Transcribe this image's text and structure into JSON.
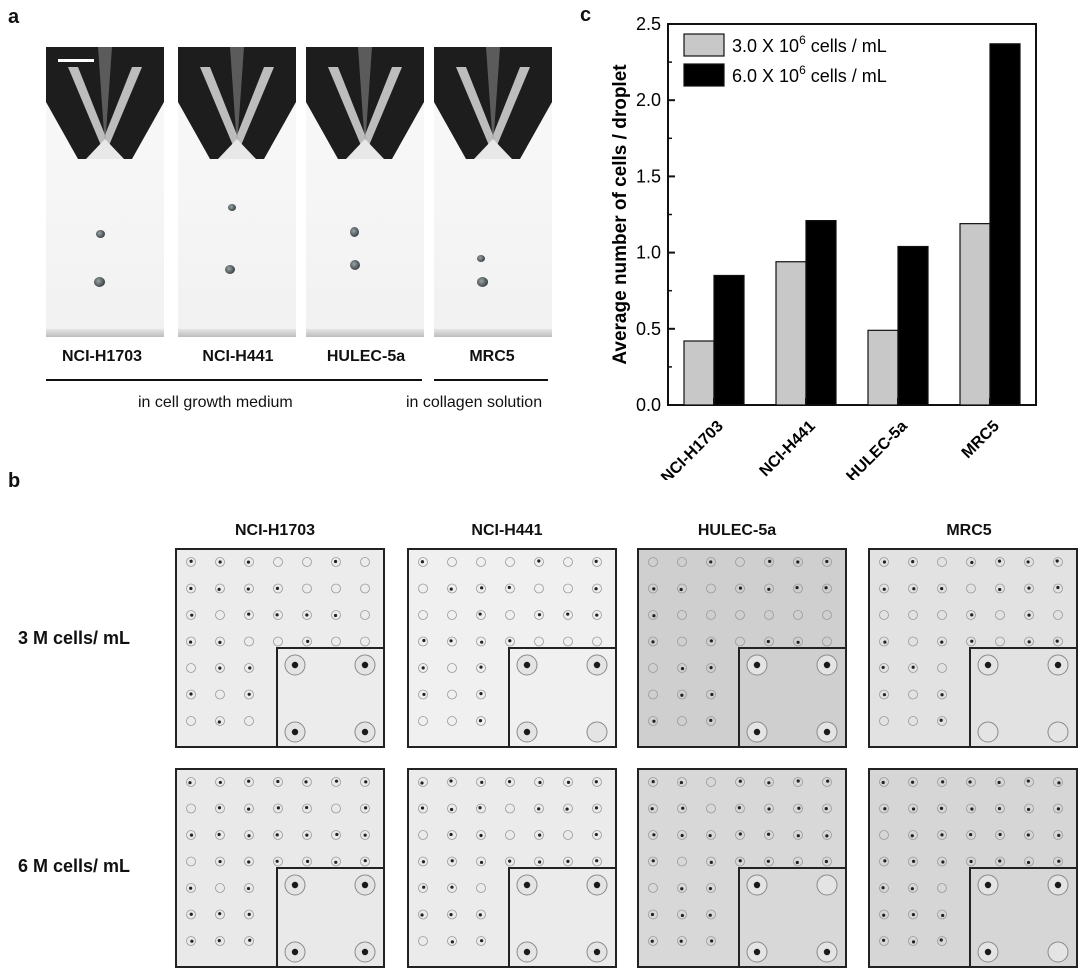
{
  "panel_letters": {
    "a": "a",
    "b": "b",
    "c": "c"
  },
  "panel_a": {
    "cell_lines": [
      "NCI-H1703",
      "NCI-H441",
      "HULEC-5a",
      "MRC5"
    ],
    "conditions": {
      "growth": "in cell growth medium",
      "collagen": "in collagen solution"
    }
  },
  "panel_b": {
    "column_headers": [
      "NCI-H1703",
      "NCI-H441",
      "HULEC-5a",
      "MRC5"
    ],
    "row_headers": [
      "3 M cells/ mL",
      "6 M cells/ mL"
    ]
  },
  "colors": {
    "low": "#c8c8c8",
    "high": "#000000"
  },
  "chart_data": {
    "type": "bar",
    "categories": [
      "NCI-H1703",
      "NCI-H441",
      "HULEC-5a",
      "MRC5"
    ],
    "series": [
      {
        "name_base": "3.0 X 10",
        "name_exp": "6",
        "name_unit": " cells / mL",
        "values": [
          0.42,
          0.94,
          0.49,
          1.19
        ]
      },
      {
        "name_base": "6.0 X 10",
        "name_exp": "6",
        "name_unit": " cells / mL",
        "values": [
          0.85,
          1.21,
          1.04,
          2.37
        ]
      }
    ],
    "ylabel": "Average number of cells / droplet",
    "ylim": [
      0.0,
      2.5
    ],
    "yticks": [
      "0.0",
      "0.5",
      "1.0",
      "1.5",
      "2.0",
      "2.5"
    ],
    "legend": "top-left"
  }
}
